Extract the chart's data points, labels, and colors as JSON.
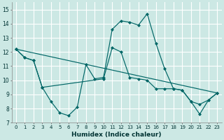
{
  "xlabel": "Humidex (Indice chaleur)",
  "bg_color": "#cce8e4",
  "grid_color": "#ffffff",
  "line_color": "#006666",
  "xlim": [
    -0.5,
    23.5
  ],
  "ylim": [
    7,
    15.5
  ],
  "yticks": [
    7,
    8,
    9,
    10,
    11,
    12,
    13,
    14,
    15
  ],
  "xticks": [
    0,
    1,
    2,
    3,
    4,
    5,
    6,
    7,
    8,
    9,
    10,
    11,
    12,
    13,
    14,
    15,
    16,
    17,
    18,
    19,
    20,
    21,
    22,
    23
  ],
  "curve1_x": [
    0,
    1,
    2,
    3,
    4,
    5,
    6,
    7,
    8,
    9,
    10,
    11,
    12,
    13,
    14,
    15,
    16,
    17,
    18,
    19,
    20,
    21,
    22,
    23
  ],
  "curve1_y": [
    12.2,
    11.6,
    11.4,
    9.5,
    8.5,
    7.7,
    7.5,
    8.1,
    11.1,
    10.1,
    10.2,
    13.6,
    14.2,
    14.1,
    13.9,
    14.7,
    12.6,
    10.8,
    9.4,
    9.3,
    8.5,
    7.6,
    8.6,
    9.1
  ],
  "curve2_x": [
    0,
    1,
    2,
    3,
    10,
    11,
    12,
    13,
    14,
    15,
    16,
    17,
    18,
    19,
    20,
    21,
    22,
    23
  ],
  "curve2_y": [
    12.2,
    11.6,
    11.4,
    9.5,
    10.1,
    12.3,
    12.0,
    10.2,
    10.1,
    10.0,
    9.4,
    9.4,
    9.4,
    9.3,
    8.5,
    8.3,
    8.6,
    9.1
  ],
  "curve3_x": [
    0,
    23
  ],
  "curve3_y": [
    12.2,
    9.1
  ]
}
